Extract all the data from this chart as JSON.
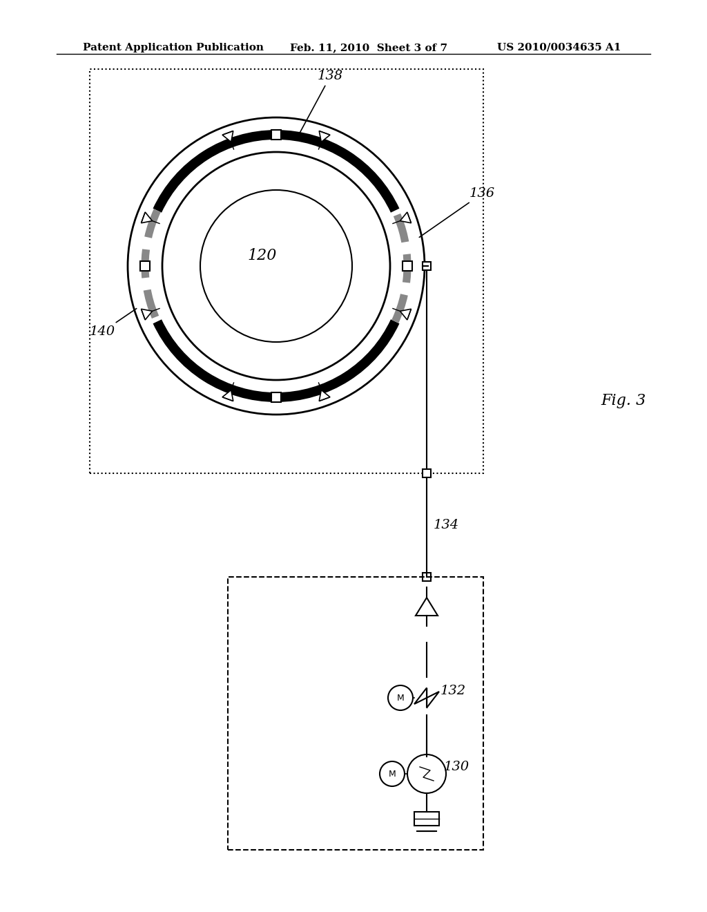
{
  "bg_color": "#ffffff",
  "line_color": "#000000",
  "header_left": "Patent Application Publication",
  "header_mid": "Feb. 11, 2010  Sheet 3 of 7",
  "header_right": "US 2010/0034635 A1",
  "fig_label": "Fig. 3",
  "label_120": "120",
  "label_130": "130",
  "label_132": "132",
  "label_134": "134",
  "label_136": "136",
  "label_138": "138",
  "label_140": "140"
}
